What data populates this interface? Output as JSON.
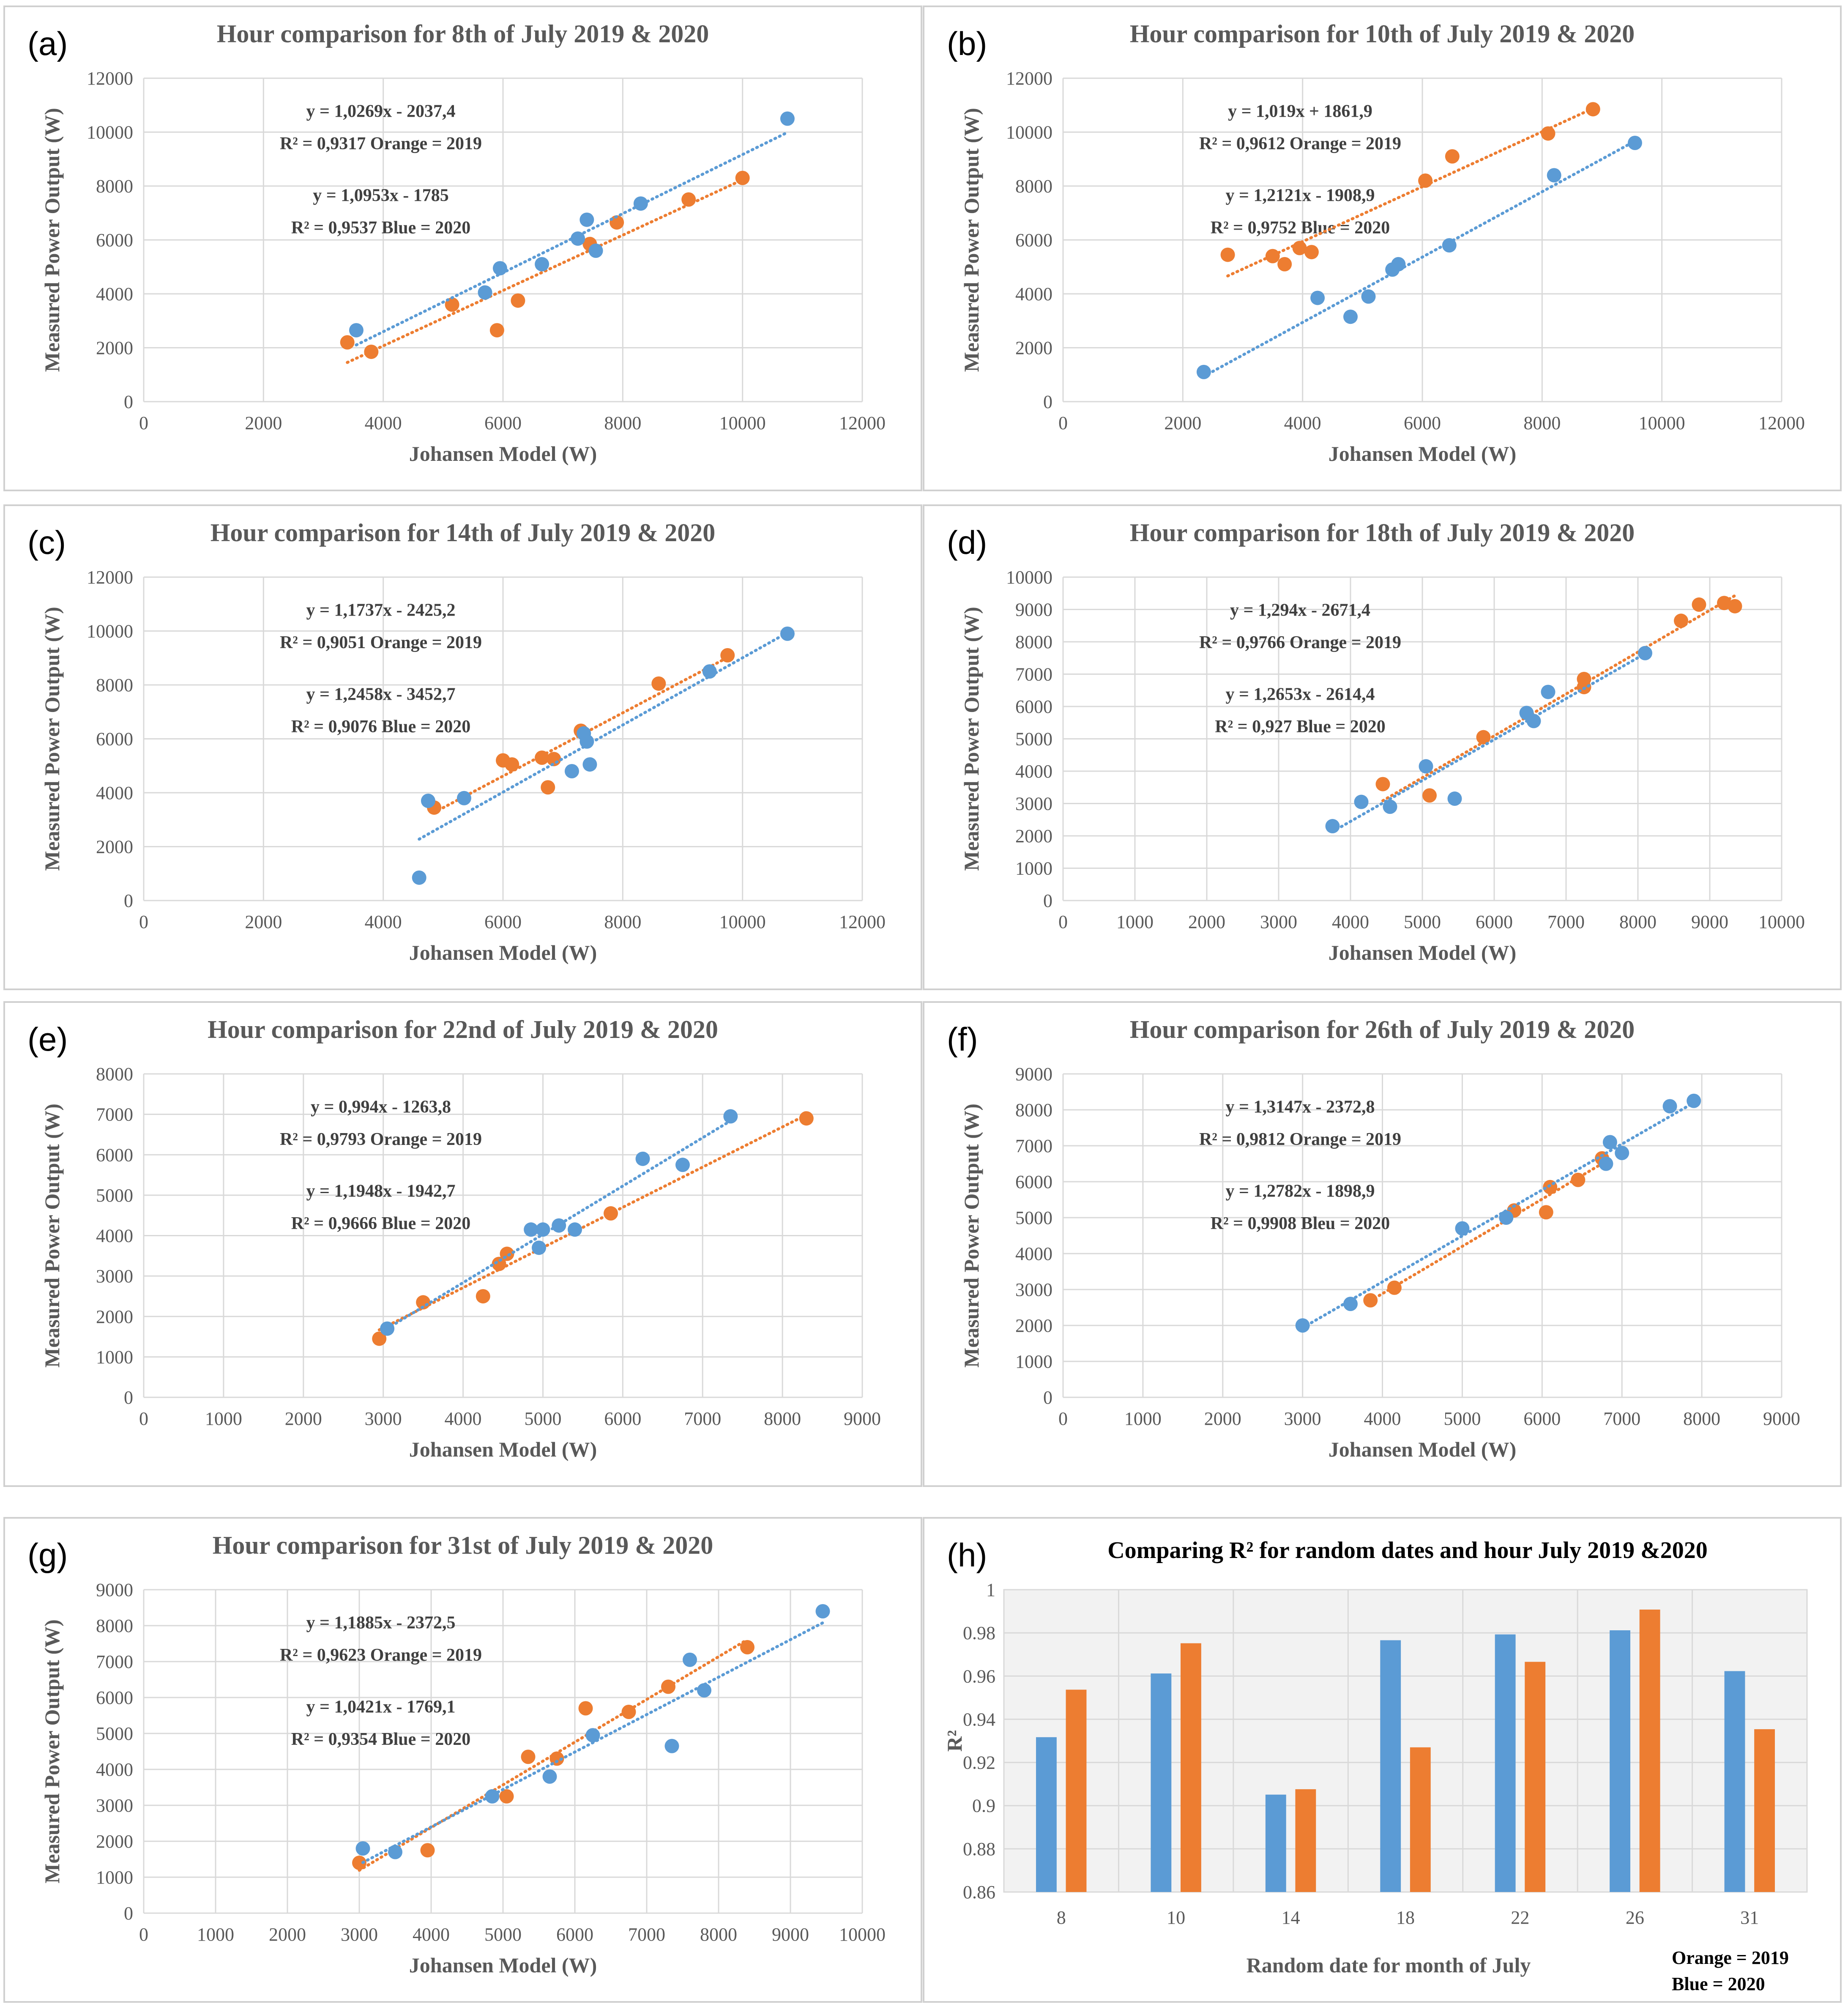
{
  "colors": {
    "orange": "#ED7D31",
    "blue": "#5B9BD5",
    "grid": "#D9D9D9",
    "frame": "#D0D0D0"
  },
  "chart_data": [
    {
      "panel": "(a)",
      "type": "scatter",
      "title": "Hour comparison for  8th of July 2019 & 2020",
      "xlabel": "Johansen Model (W)",
      "ylabel": "Measured Power Output (W)",
      "xlim": [
        0,
        12000
      ],
      "ylim": [
        0,
        12000
      ],
      "xticks": [
        0,
        2000,
        4000,
        6000,
        8000,
        10000,
        12000
      ],
      "yticks": [
        0,
        2000,
        4000,
        6000,
        8000,
        10000,
        12000
      ],
      "grid": true,
      "annotations": [
        "y = 1,0269x - 2037,4",
        "R² = 0,9317 Orange = 2019",
        "y = 1,0953x - 1785",
        "R² = 0,9537 Blue = 2020"
      ],
      "series": [
        {
          "color": "orange",
          "trendline": "y = 1,0269x - 2037,4",
          "points": [
            [
              3400,
              2200
            ],
            [
              3800,
              1850
            ],
            [
              5150,
              3600
            ],
            [
              5900,
              2650
            ],
            [
              6250,
              3750
            ],
            [
              7450,
              5850
            ],
            [
              7900,
              6650
            ],
            [
              9100,
              7500
            ],
            [
              10000,
              8300
            ]
          ]
        },
        {
          "color": "blue",
          "trendline": "y = 1,0953x - 1785",
          "points": [
            [
              3550,
              2650
            ],
            [
              5700,
              4050
            ],
            [
              5950,
              4950
            ],
            [
              6650,
              5100
            ],
            [
              7250,
              6050
            ],
            [
              7400,
              6750
            ],
            [
              7550,
              5600
            ],
            [
              8300,
              7350
            ],
            [
              10750,
              10500
            ]
          ]
        }
      ]
    },
    {
      "panel": "(b)",
      "type": "scatter",
      "title": "Hour comparison for  10th of July 2019 & 2020",
      "xlabel": "Johansen Model (W)",
      "ylabel": "Measured Power Output (W)",
      "xlim": [
        0,
        12000
      ],
      "ylim": [
        0,
        12000
      ],
      "xticks": [
        0,
        2000,
        4000,
        6000,
        8000,
        10000,
        12000
      ],
      "yticks": [
        0,
        2000,
        4000,
        6000,
        8000,
        10000,
        12000
      ],
      "grid": true,
      "annotations": [
        "y = 1,019x + 1861,9",
        "R² = 0,9612 Orange = 2019",
        "y = 1,2121x - 1908,9",
        "R² = 0,9752  Blue = 2020"
      ],
      "series": [
        {
          "color": "orange",
          "trendline": "y = 1,019x + 1861,9",
          "points": [
            [
              2750,
              5450
            ],
            [
              3500,
              5400
            ],
            [
              3700,
              5100
            ],
            [
              3950,
              5700
            ],
            [
              4150,
              5550
            ],
            [
              6050,
              8200
            ],
            [
              6500,
              9100
            ],
            [
              8100,
              9950
            ],
            [
              8850,
              10850
            ]
          ]
        },
        {
          "color": "blue",
          "trendline": "y = 1,2121x - 1908,9",
          "points": [
            [
              2350,
              1100
            ],
            [
              4250,
              3850
            ],
            [
              4800,
              3150
            ],
            [
              5100,
              3900
            ],
            [
              5500,
              4900
            ],
            [
              5600,
              5100
            ],
            [
              6450,
              5800
            ],
            [
              8200,
              8400
            ],
            [
              9550,
              9600
            ]
          ]
        }
      ]
    },
    {
      "panel": "(c)",
      "type": "scatter",
      "title": "Hour comparison for  14th of July 2019 & 2020",
      "xlabel": "Johansen Model (W)",
      "ylabel": "Measured Power Output (W)",
      "xlim": [
        0,
        12000
      ],
      "ylim": [
        0,
        12000
      ],
      "xticks": [
        0,
        2000,
        4000,
        6000,
        8000,
        10000,
        12000
      ],
      "yticks": [
        0,
        2000,
        4000,
        6000,
        8000,
        10000,
        12000
      ],
      "grid": true,
      "annotations": [
        "y = 1,1737x - 2425,2",
        "R² = 0,9051 Orange = 2019",
        "y = 1,2458x - 3452,7",
        "R² = 0,9076 Blue = 2020"
      ],
      "series": [
        {
          "color": "orange",
          "trendline": "y = 1,1737x - 2425,2",
          "points": [
            [
              4850,
              3450
            ],
            [
              6000,
              5200
            ],
            [
              6150,
              5050
            ],
            [
              6650,
              5300
            ],
            [
              6750,
              4200
            ],
            [
              6850,
              5250
            ],
            [
              7300,
              6300
            ],
            [
              8600,
              8050
            ],
            [
              9750,
              9100
            ]
          ]
        },
        {
          "color": "blue",
          "trendline": "y = 1,2458x - 3452,7",
          "points": [
            [
              4600,
              850
            ],
            [
              4750,
              3700
            ],
            [
              5350,
              3800
            ],
            [
              7150,
              4800
            ],
            [
              7350,
              6200
            ],
            [
              7400,
              5900
            ],
            [
              7450,
              5050
            ],
            [
              9450,
              8500
            ],
            [
              10750,
              9900
            ]
          ]
        }
      ]
    },
    {
      "panel": "(d)",
      "type": "scatter",
      "title": "Hour comparison for  18th of July 2019 & 2020",
      "xlabel": "Johansen Model (W)",
      "ylabel": "Measured Power Output (W)",
      "xlim": [
        0,
        10000
      ],
      "ylim": [
        0,
        10000
      ],
      "xticks": [
        0,
        1000,
        2000,
        3000,
        4000,
        5000,
        6000,
        7000,
        8000,
        9000,
        10000
      ],
      "yticks": [
        0,
        1000,
        2000,
        3000,
        4000,
        5000,
        6000,
        7000,
        8000,
        9000,
        10000
      ],
      "grid": true,
      "annotations": [
        "y = 1,294x - 2671,4",
        "R² = 0,9766 Orange = 2019",
        "y = 1,2653x - 2614,4",
        "R² = 0,927 Blue = 2020"
      ],
      "series": [
        {
          "color": "orange",
          "trendline": "y = 1,294x - 2671,4",
          "points": [
            [
              4450,
              3600
            ],
            [
              5100,
              3250
            ],
            [
              5850,
              5050
            ],
            [
              7250,
              6850
            ],
            [
              7250,
              6600
            ],
            [
              8600,
              8650
            ],
            [
              8850,
              9150
            ],
            [
              9200,
              9200
            ],
            [
              9350,
              9100
            ]
          ]
        },
        {
          "color": "blue",
          "trendline": "y = 1,2653x - 2614,4",
          "points": [
            [
              3750,
              2300
            ],
            [
              4150,
              3050
            ],
            [
              4550,
              2900
            ],
            [
              5050,
              4150
            ],
            [
              5450,
              3150
            ],
            [
              6450,
              5800
            ],
            [
              6550,
              5550
            ],
            [
              6750,
              6450
            ],
            [
              8100,
              7650
            ]
          ]
        }
      ]
    },
    {
      "panel": "(e)",
      "type": "scatter",
      "title": "Hour comparison for  22nd of July 2019 & 2020",
      "xlabel": "Johansen Model (W)",
      "ylabel": "Measured Power Output (W)",
      "xlim": [
        0,
        9000
      ],
      "ylim": [
        0,
        8000
      ],
      "xticks": [
        0,
        1000,
        2000,
        3000,
        4000,
        5000,
        6000,
        7000,
        8000,
        9000
      ],
      "yticks": [
        0,
        1000,
        2000,
        3000,
        4000,
        5000,
        6000,
        7000,
        8000
      ],
      "grid": true,
      "annotations": [
        "y = 0,994x - 1263,8",
        "R² = 0,9793 Orange = 2019",
        "y = 1,1948x - 1942,7",
        "R² = 0,9666 Blue = 2020"
      ],
      "series": [
        {
          "color": "orange",
          "trendline": "y = 0,994x - 1263,8",
          "points": [
            [
              2950,
              1450
            ],
            [
              3500,
              2350
            ],
            [
              4250,
              2500
            ],
            [
              4450,
              3300
            ],
            [
              4550,
              3550
            ],
            [
              5850,
              4550
            ],
            [
              8300,
              6900
            ]
          ]
        },
        {
          "color": "blue",
          "trendline": "y = 1,1948x - 1942,7",
          "points": [
            [
              3050,
              1700
            ],
            [
              4850,
              4150
            ],
            [
              4950,
              3700
            ],
            [
              5000,
              4150
            ],
            [
              5200,
              4250
            ],
            [
              5400,
              4150
            ],
            [
              6250,
              5900
            ],
            [
              6750,
              5750
            ],
            [
              7350,
              6950
            ]
          ]
        }
      ]
    },
    {
      "panel": "(f)",
      "type": "scatter",
      "title": "Hour comparison for  26th of July 2019 & 2020",
      "xlabel": "Johansen Model (W)",
      "ylabel": "Measured Power Output (W)",
      "xlim": [
        0,
        9000
      ],
      "ylim": [
        0,
        9000
      ],
      "xticks": [
        0,
        1000,
        2000,
        3000,
        4000,
        5000,
        6000,
        7000,
        8000,
        9000
      ],
      "yticks": [
        0,
        1000,
        2000,
        3000,
        4000,
        5000,
        6000,
        7000,
        8000,
        9000
      ],
      "grid": true,
      "annotations": [
        "y = 1,3147x - 2372,8",
        "R² = 0,9812 Orange = 2019",
        "y = 1,2782x - 1898,9",
        "R² = 0,9908 Bleu = 2020"
      ],
      "series": [
        {
          "color": "orange",
          "trendline": "y = 1,3147x - 2372,8",
          "points": [
            [
              3850,
              2700
            ],
            [
              4150,
              3050
            ],
            [
              5650,
              5200
            ],
            [
              6050,
              5150
            ],
            [
              6100,
              5850
            ],
            [
              6450,
              6050
            ],
            [
              6750,
              6650
            ]
          ]
        },
        {
          "color": "blue",
          "trendline": "y = 1,2782x - 1898,9",
          "points": [
            [
              3000,
              2000
            ],
            [
              3600,
              2600
            ],
            [
              5000,
              4700
            ],
            [
              5550,
              5000
            ],
            [
              6800,
              6500
            ],
            [
              6850,
              7100
            ],
            [
              7000,
              6800
            ],
            [
              7600,
              8100
            ],
            [
              7900,
              8250
            ]
          ]
        }
      ]
    },
    {
      "panel": "(g)",
      "type": "scatter",
      "title": "Hour comparison for  31st of July 2019 & 2020",
      "xlabel": "Johansen Model (W)",
      "ylabel": "Measured Power Output (W)",
      "xlim": [
        0,
        10000
      ],
      "ylim": [
        0,
        9000
      ],
      "xticks": [
        0,
        1000,
        2000,
        3000,
        4000,
        5000,
        6000,
        7000,
        8000,
        9000,
        10000
      ],
      "yticks": [
        0,
        1000,
        2000,
        3000,
        4000,
        5000,
        6000,
        7000,
        8000,
        9000
      ],
      "grid": true,
      "annotations": [
        "y = 1,1885x - 2372,5",
        "R² = 0,9623 Orange = 2019",
        "y = 1,0421x - 1769,1",
        "R² = 0,9354 Blue = 2020"
      ],
      "series": [
        {
          "color": "orange",
          "trendline": "y = 1,1885x - 2372,5",
          "points": [
            [
              3000,
              1400
            ],
            [
              3950,
              1750
            ],
            [
              5050,
              3250
            ],
            [
              5350,
              4350
            ],
            [
              5750,
              4300
            ],
            [
              6150,
              5700
            ],
            [
              6750,
              5600
            ],
            [
              7300,
              6300
            ],
            [
              8400,
              7400
            ]
          ]
        },
        {
          "color": "blue",
          "trendline": "y = 1,0421x - 1769,1",
          "points": [
            [
              3050,
              1800
            ],
            [
              3500,
              1700
            ],
            [
              4850,
              3250
            ],
            [
              5650,
              3800
            ],
            [
              6250,
              4950
            ],
            [
              7350,
              4650
            ],
            [
              7600,
              7050
            ],
            [
              7800,
              6200
            ],
            [
              9450,
              8400
            ]
          ]
        }
      ]
    },
    {
      "panel": "(h)",
      "type": "bar",
      "title": "Comparing R² for random dates and hour July 2019 &2020",
      "xlabel": "Random date for month of July",
      "ylabel": "R²",
      "ylim": [
        0.86,
        1
      ],
      "yticks": [
        "0.86",
        "0.88",
        "0.9",
        "0.92",
        "0.94",
        "0.96",
        "0.98",
        "1"
      ],
      "grid": true,
      "categories": [
        "8",
        "10",
        "14",
        "18",
        "22",
        "26",
        "31"
      ],
      "series": [
        {
          "color": "blue",
          "values": [
            0.9317,
            0.9612,
            0.9051,
            0.9766,
            0.9793,
            0.9812,
            0.9623
          ]
        },
        {
          "color": "orange",
          "values": [
            0.9537,
            0.9752,
            0.9076,
            0.927,
            0.9666,
            0.9908,
            0.9354
          ]
        }
      ],
      "legend": [
        "Orange = 2019",
        "Blue = 2020"
      ],
      "legend_position": "bottom-right"
    }
  ]
}
